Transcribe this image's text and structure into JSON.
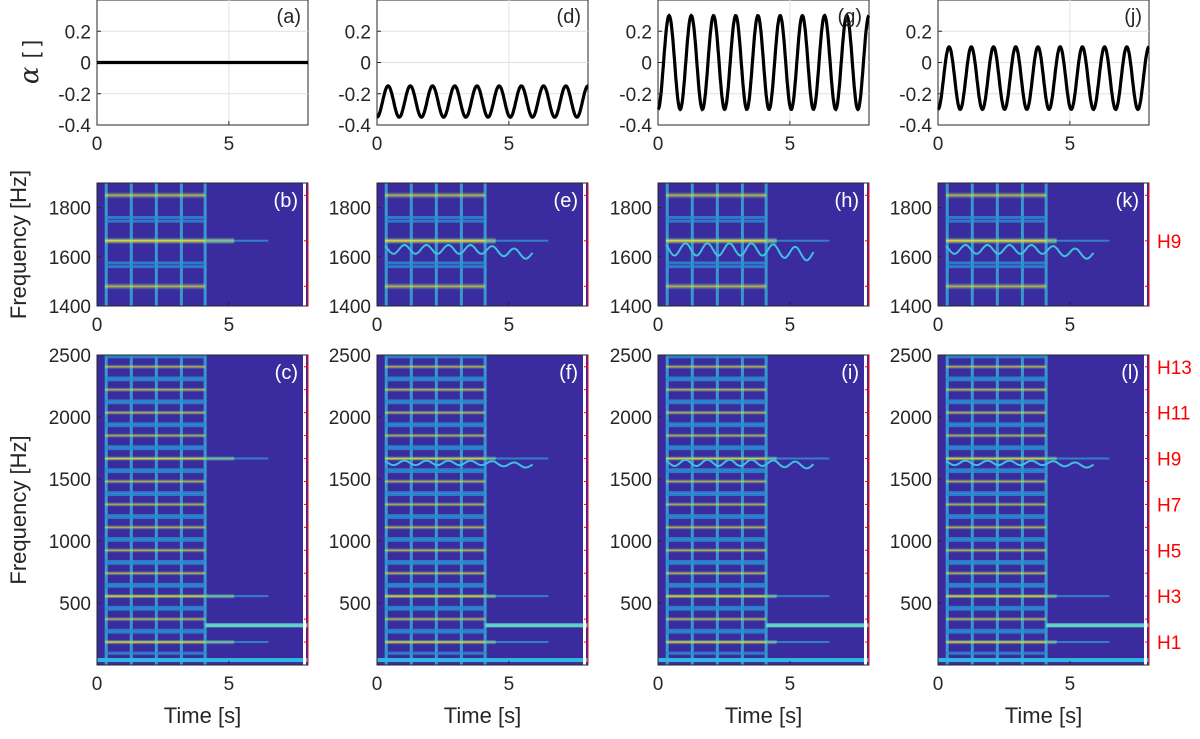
{
  "chart_data": {
    "type": "line",
    "colors": {
      "spectrogram_bg": "#3a2c9e",
      "line": "#000000",
      "harmonic_label": "#ff0000"
    },
    "rows": [
      {
        "kind": "alpha_signal",
        "ylabel_symbol": "α",
        "ylabel_unit": "[ ]",
        "ylim": [
          -0.4,
          0.4
        ],
        "yticks": [
          "0.2",
          "0",
          "-0.2",
          "-0.4"
        ],
        "xlim": [
          0,
          8
        ],
        "xticks": [
          "0",
          "5"
        ],
        "panels": [
          {
            "label": "(a)",
            "offset": 0.0,
            "amplitude": 0.0,
            "cycles": 0
          },
          {
            "label": "(d)",
            "offset": -0.25,
            "amplitude": 0.1,
            "cycles": 9.5
          },
          {
            "label": "(g)",
            "offset": 0.0,
            "amplitude": 0.3,
            "cycles": 9.5
          },
          {
            "label": "(j)",
            "offset": -0.1,
            "amplitude": 0.2,
            "cycles": 9.5
          }
        ]
      },
      {
        "kind": "spectrogram_zoom",
        "ylabel": "Frequency [Hz]",
        "ylim": [
          1400,
          1900
        ],
        "yticks": [
          "1800",
          "1600",
          "1400"
        ],
        "xlim": [
          0,
          8
        ],
        "xticks": [
          "0",
          "5"
        ],
        "harmonic_labels": [
          "H9"
        ],
        "panels": [
          {
            "label": "(b)"
          },
          {
            "label": "(e)"
          },
          {
            "label": "(h)"
          },
          {
            "label": "(k)"
          }
        ]
      },
      {
        "kind": "spectrogram_full",
        "ylabel": "Frequency [Hz]",
        "xlabel": "Time [s]",
        "ylim": [
          0,
          2500
        ],
        "yticks": [
          "2500",
          "2000",
          "1500",
          "1000",
          "500"
        ],
        "xlim": [
          0,
          8
        ],
        "xticks": [
          "0",
          "5"
        ],
        "harmonic_labels": [
          "H13",
          "H11",
          "H9",
          "H7",
          "H5",
          "H3",
          "H1"
        ],
        "panels": [
          {
            "label": "(c)"
          },
          {
            "label": "(f)"
          },
          {
            "label": "(i)"
          },
          {
            "label": "(l)"
          }
        ]
      }
    ]
  }
}
